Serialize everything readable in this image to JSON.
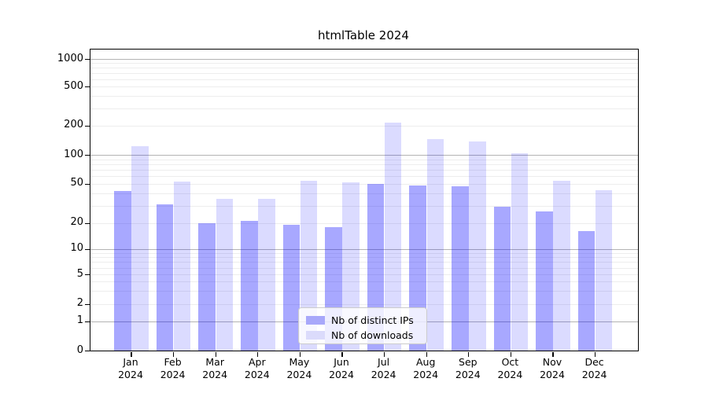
{
  "figure": {
    "title": "htmlTable 2024",
    "background_color": "#ffffff"
  },
  "chart_data": {
    "type": "bar",
    "title": "htmlTable 2024",
    "xlabel": "",
    "ylabel": "",
    "categories": [
      "Jan 2024",
      "Feb 2024",
      "Mar 2024",
      "Apr 2024",
      "May 2024",
      "Jun 2024",
      "Jul 2024",
      "Aug 2024",
      "Sep 2024",
      "Oct 2024",
      "Nov 2024",
      "Dec 2024"
    ],
    "series": [
      {
        "name": "Nb of distinct IPs",
        "color": "rgba(0,0,255,0.34)",
        "color_on_white": "#a8a8fa",
        "values": [
          42,
          31,
          20,
          21,
          19,
          18,
          50,
          48,
          47,
          29,
          26,
          16
        ]
      },
      {
        "name": "Nb of downloads",
        "color": "rgba(0,0,255,0.14)",
        "color_on_white": "#dbdbfb",
        "values": [
          123,
          53,
          35,
          35,
          54,
          52,
          215,
          146,
          137,
          104,
          54,
          43
        ]
      }
    ],
    "y_axis": {
      "scale": "log-like (asinh/symlog) with zero baseline",
      "tick_values": [
        0,
        1,
        2,
        5,
        10,
        20,
        50,
        100,
        200,
        500,
        1000
      ],
      "tick_labels": [
        "0",
        "1",
        "2",
        "5",
        "10",
        "20",
        "50",
        "100",
        "200",
        "500",
        "1000"
      ],
      "ylim": [
        0,
        1400
      ],
      "major_grid_values": [
        1,
        10,
        100,
        1000
      ],
      "grid": "on"
    },
    "legend": {
      "position": "lower center",
      "entries": [
        "Nb of distinct IPs",
        "Nb of downloads"
      ]
    }
  }
}
